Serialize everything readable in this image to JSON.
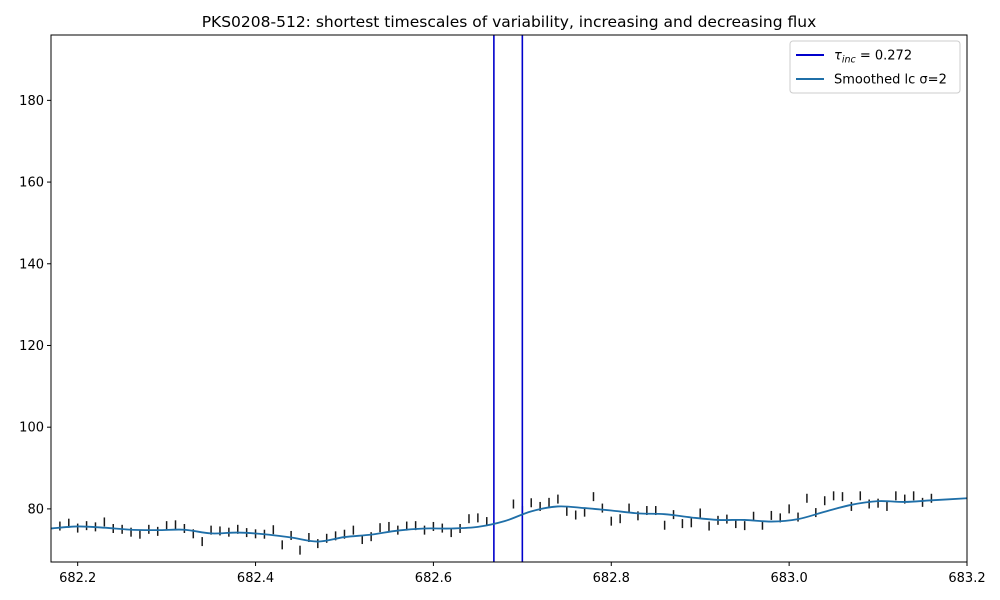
{
  "chart_data": {
    "type": "line",
    "title": "PKS0208-512: shortest timescales of variability, increasing and decreasing flux",
    "xlabel": "",
    "ylabel": "",
    "xlim": [
      682.17,
      683.2
    ],
    "ylim": [
      67,
      196
    ],
    "xticks": [
      682.2,
      682.4,
      682.6,
      682.8,
      683.0,
      683.2
    ],
    "xtick_labels": [
      "682.2",
      "682.4",
      "682.6",
      "682.8",
      "683.0",
      "683.2"
    ],
    "yticks": [
      80,
      100,
      120,
      140,
      160,
      180
    ],
    "ytick_labels": [
      "80",
      "100",
      "120",
      "140",
      "160",
      "180"
    ],
    "grid": false,
    "legend_position": "top-right",
    "legend": [
      {
        "label_main": "τ",
        "label_sub": "inc",
        "label_rest": " = 0.272",
        "color": "#0000cc",
        "kind": "vline"
      },
      {
        "label_main": "Smoothed lc σ=2",
        "label_sub": "",
        "label_rest": "",
        "color": "#1f6fa8",
        "kind": "line"
      }
    ],
    "vlines": [
      {
        "x": 682.668,
        "color": "#0000cc"
      },
      {
        "x": 682.7,
        "color": "#0000cc"
      }
    ],
    "errorbar_color": "#1a1a1a",
    "observations": [
      {
        "x": 682.18,
        "y": 75.8
      },
      {
        "x": 682.19,
        "y": 76.5
      },
      {
        "x": 682.2,
        "y": 75.3
      },
      {
        "x": 682.21,
        "y": 75.9
      },
      {
        "x": 682.22,
        "y": 75.6
      },
      {
        "x": 682.23,
        "y": 76.8
      },
      {
        "x": 682.24,
        "y": 75.2
      },
      {
        "x": 682.25,
        "y": 75.0
      },
      {
        "x": 682.26,
        "y": 74.3
      },
      {
        "x": 682.27,
        "y": 73.8
      },
      {
        "x": 682.28,
        "y": 75.0
      },
      {
        "x": 682.29,
        "y": 74.5
      },
      {
        "x": 682.3,
        "y": 75.9
      },
      {
        "x": 682.31,
        "y": 76.1
      },
      {
        "x": 682.32,
        "y": 75.2
      },
      {
        "x": 682.33,
        "y": 73.9
      },
      {
        "x": 682.34,
        "y": 72.0
      },
      {
        "x": 682.35,
        "y": 74.8
      },
      {
        "x": 682.36,
        "y": 74.6
      },
      {
        "x": 682.37,
        "y": 74.3
      },
      {
        "x": 682.38,
        "y": 75.0
      },
      {
        "x": 682.39,
        "y": 74.2
      },
      {
        "x": 682.4,
        "y": 73.9
      },
      {
        "x": 682.41,
        "y": 73.8
      },
      {
        "x": 682.42,
        "y": 74.9
      },
      {
        "x": 682.43,
        "y": 71.2
      },
      {
        "x": 682.44,
        "y": 73.5
      },
      {
        "x": 682.45,
        "y": 69.9
      },
      {
        "x": 682.46,
        "y": 73.0
      },
      {
        "x": 682.47,
        "y": 71.5
      },
      {
        "x": 682.48,
        "y": 72.8
      },
      {
        "x": 682.49,
        "y": 73.4
      },
      {
        "x": 682.5,
        "y": 73.8
      },
      {
        "x": 682.51,
        "y": 74.8
      },
      {
        "x": 682.52,
        "y": 72.5
      },
      {
        "x": 682.53,
        "y": 73.2
      },
      {
        "x": 682.54,
        "y": 75.4
      },
      {
        "x": 682.55,
        "y": 75.7
      },
      {
        "x": 682.56,
        "y": 74.8
      },
      {
        "x": 682.57,
        "y": 75.8
      },
      {
        "x": 682.58,
        "y": 75.9
      },
      {
        "x": 682.59,
        "y": 74.8
      },
      {
        "x": 682.6,
        "y": 75.7
      },
      {
        "x": 682.61,
        "y": 75.3
      },
      {
        "x": 682.62,
        "y": 74.2
      },
      {
        "x": 682.63,
        "y": 75.2
      },
      {
        "x": 682.64,
        "y": 77.6
      },
      {
        "x": 682.65,
        "y": 77.8
      },
      {
        "x": 682.66,
        "y": 76.9
      },
      {
        "x": 682.69,
        "y": 81.2
      },
      {
        "x": 682.7,
        "y": 79.6
      },
      {
        "x": 682.71,
        "y": 81.5
      },
      {
        "x": 682.72,
        "y": 80.6
      },
      {
        "x": 682.73,
        "y": 81.6
      },
      {
        "x": 682.74,
        "y": 82.4
      },
      {
        "x": 682.75,
        "y": 79.4
      },
      {
        "x": 682.76,
        "y": 78.5
      },
      {
        "x": 682.77,
        "y": 79.2
      },
      {
        "x": 682.78,
        "y": 83.0
      },
      {
        "x": 682.79,
        "y": 80.2
      },
      {
        "x": 682.8,
        "y": 77.0
      },
      {
        "x": 682.81,
        "y": 77.6
      },
      {
        "x": 682.82,
        "y": 80.2
      },
      {
        "x": 682.83,
        "y": 78.3
      },
      {
        "x": 682.84,
        "y": 79.6
      },
      {
        "x": 682.85,
        "y": 79.6
      },
      {
        "x": 682.86,
        "y": 76.0
      },
      {
        "x": 682.87,
        "y": 78.6
      },
      {
        "x": 682.88,
        "y": 76.4
      },
      {
        "x": 682.89,
        "y": 76.6
      },
      {
        "x": 682.9,
        "y": 79.0
      },
      {
        "x": 682.91,
        "y": 75.8
      },
      {
        "x": 682.92,
        "y": 77.2
      },
      {
        "x": 682.93,
        "y": 77.5
      },
      {
        "x": 682.94,
        "y": 76.4
      },
      {
        "x": 682.95,
        "y": 75.9
      },
      {
        "x": 682.96,
        "y": 78.2
      },
      {
        "x": 682.97,
        "y": 76.0
      },
      {
        "x": 682.98,
        "y": 78.4
      },
      {
        "x": 682.99,
        "y": 77.8
      },
      {
        "x": 683.0,
        "y": 80.0
      },
      {
        "x": 683.01,
        "y": 78.0
      },
      {
        "x": 683.02,
        "y": 82.6
      },
      {
        "x": 683.03,
        "y": 79.1
      },
      {
        "x": 683.04,
        "y": 82.0
      },
      {
        "x": 683.05,
        "y": 83.2
      },
      {
        "x": 683.06,
        "y": 83.0
      },
      {
        "x": 683.07,
        "y": 80.6
      },
      {
        "x": 683.08,
        "y": 83.2
      },
      {
        "x": 683.09,
        "y": 81.2
      },
      {
        "x": 683.1,
        "y": 81.4
      },
      {
        "x": 683.11,
        "y": 80.6
      },
      {
        "x": 683.12,
        "y": 83.2
      },
      {
        "x": 683.13,
        "y": 82.4
      },
      {
        "x": 683.14,
        "y": 83.2
      },
      {
        "x": 683.15,
        "y": 81.6
      },
      {
        "x": 683.16,
        "y": 82.6
      }
    ],
    "smoothed": {
      "name": "Smoothed lc σ=2",
      "x": [
        682.17,
        682.2,
        682.23,
        682.26,
        682.29,
        682.32,
        682.35,
        682.38,
        682.41,
        682.44,
        682.47,
        682.5,
        682.53,
        682.56,
        682.59,
        682.62,
        682.65,
        682.68,
        682.71,
        682.74,
        682.77,
        682.8,
        682.83,
        682.86,
        682.89,
        682.92,
        682.95,
        682.98,
        683.01,
        683.04,
        683.07,
        683.1,
        683.13,
        683.16,
        683.2
      ],
      "y": [
        75.2,
        75.7,
        75.4,
        74.9,
        74.8,
        74.9,
        74.0,
        74.2,
        73.8,
        73.0,
        72.0,
        73.1,
        73.7,
        74.7,
        75.2,
        75.2,
        75.6,
        77.0,
        79.4,
        80.6,
        80.2,
        79.6,
        78.9,
        78.7,
        77.9,
        77.3,
        77.3,
        76.9,
        77.5,
        79.3,
        81.0,
        81.9,
        81.7,
        82.1,
        82.6
      ]
    }
  }
}
